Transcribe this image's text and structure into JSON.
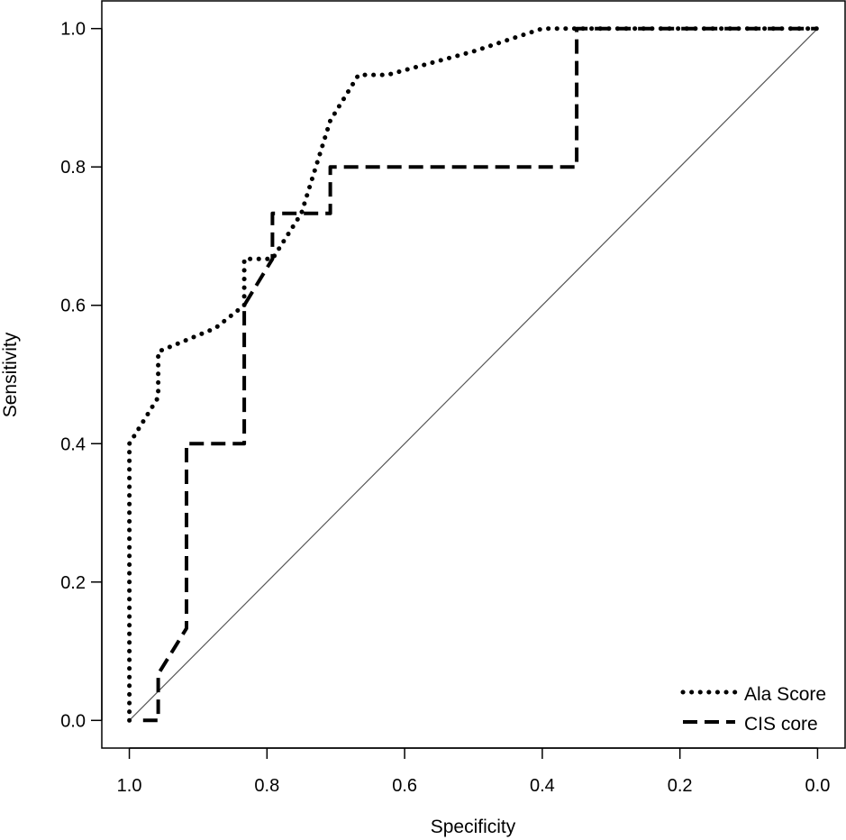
{
  "chart_data": {
    "type": "line",
    "xlabel": "Specificity",
    "ylabel": "Sensitivity",
    "xlim": [
      1.04,
      -0.04
    ],
    "ylim": [
      -0.04,
      1.04
    ],
    "x_ticks": [
      "1.0",
      "0.8",
      "0.6",
      "0.4",
      "0.2",
      "0.0"
    ],
    "x_tick_values": [
      1.0,
      0.8,
      0.6,
      0.4,
      0.2,
      0.0
    ],
    "y_ticks": [
      "0.0",
      "0.2",
      "0.4",
      "0.6",
      "0.8",
      "1.0"
    ],
    "y_tick_values": [
      0.0,
      0.2,
      0.4,
      0.6,
      0.8,
      1.0
    ],
    "reference_line": {
      "from": [
        1.0,
        0.0
      ],
      "to": [
        0.0,
        1.0
      ],
      "color": "#555555"
    },
    "legend_position": "bottom-right",
    "series": [
      {
        "name": "Ala Score",
        "style": "dotted",
        "color": "#000000",
        "points": [
          [
            1.0,
            0.0
          ],
          [
            1.0,
            0.4
          ],
          [
            0.958,
            0.467
          ],
          [
            0.958,
            0.533
          ],
          [
            0.875,
            0.567
          ],
          [
            0.833,
            0.6
          ],
          [
            0.833,
            0.667
          ],
          [
            0.792,
            0.667
          ],
          [
            0.75,
            0.733
          ],
          [
            0.708,
            0.867
          ],
          [
            0.667,
            0.933
          ],
          [
            0.625,
            0.933
          ],
          [
            0.5,
            0.967
          ],
          [
            0.4,
            1.0
          ],
          [
            0.0,
            1.0
          ]
        ]
      },
      {
        "name": "CIS core",
        "style": "dashed",
        "color": "#000000",
        "points": [
          [
            0.98,
            0.0
          ],
          [
            0.958,
            0.0
          ],
          [
            0.958,
            0.067
          ],
          [
            0.917,
            0.133
          ],
          [
            0.917,
            0.4
          ],
          [
            0.833,
            0.4
          ],
          [
            0.833,
            0.6
          ],
          [
            0.792,
            0.667
          ],
          [
            0.792,
            0.733
          ],
          [
            0.708,
            0.733
          ],
          [
            0.708,
            0.8
          ],
          [
            0.35,
            0.8
          ],
          [
            0.35,
            1.0
          ],
          [
            0.0,
            1.0
          ]
        ]
      }
    ]
  }
}
